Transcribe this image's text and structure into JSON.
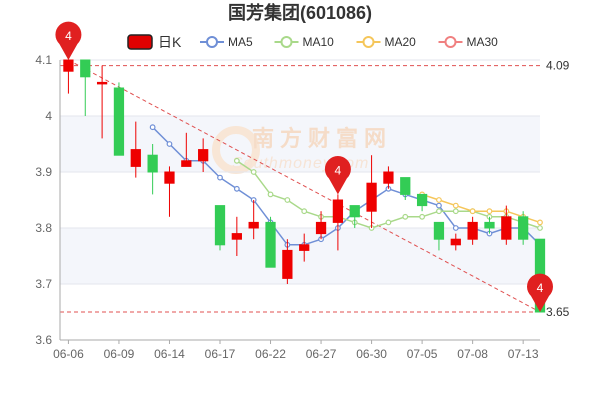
{
  "chart_data": {
    "type": "candlestick",
    "title": "国芳集团(601086)",
    "legend": {
      "kline": "日K",
      "items": [
        {
          "name": "MA5",
          "color": "#6f8fd6"
        },
        {
          "name": "MA10",
          "color": "#a9d98a"
        },
        {
          "name": "MA20",
          "color": "#f5c65a"
        },
        {
          "name": "MA30",
          "color": "#f08080"
        }
      ]
    },
    "colors": {
      "up": "#ee0000",
      "down": "#33cc55"
    },
    "ylim": [
      3.6,
      4.1
    ],
    "yticks": [
      "3.6",
      "3.7",
      "3.8",
      "3.9",
      "4",
      "4.1"
    ],
    "x_labels": [
      "06-06",
      "06-09",
      "06-14",
      "06-17",
      "06-22",
      "06-27",
      "06-30",
      "07-05",
      "07-08",
      "07-13"
    ],
    "candles": [
      {
        "o": 4.08,
        "c": 4.1,
        "h": 4.1,
        "l": 4.04
      },
      {
        "o": 4.1,
        "c": 4.07,
        "h": 4.1,
        "l": 4.0
      },
      {
        "o": 4.06,
        "c": 4.06,
        "h": 4.09,
        "l": 3.96
      },
      {
        "o": 4.05,
        "c": 3.93,
        "h": 4.06,
        "l": 3.93
      },
      {
        "o": 3.91,
        "c": 3.94,
        "h": 3.99,
        "l": 3.89
      },
      {
        "o": 3.93,
        "c": 3.9,
        "h": 3.95,
        "l": 3.86
      },
      {
        "o": 3.88,
        "c": 3.9,
        "h": 3.91,
        "l": 3.82
      },
      {
        "o": 3.91,
        "c": 3.92,
        "h": 3.97,
        "l": 3.91
      },
      {
        "o": 3.92,
        "c": 3.94,
        "h": 3.96,
        "l": 3.9
      },
      {
        "o": 3.84,
        "c": 3.77,
        "h": 3.84,
        "l": 3.76
      },
      {
        "o": 3.78,
        "c": 3.79,
        "h": 3.82,
        "l": 3.75
      },
      {
        "o": 3.8,
        "c": 3.81,
        "h": 3.85,
        "l": 3.78
      },
      {
        "o": 3.81,
        "c": 3.73,
        "h": 3.82,
        "l": 3.73
      },
      {
        "o": 3.71,
        "c": 3.76,
        "h": 3.78,
        "l": 3.7
      },
      {
        "o": 3.76,
        "c": 3.77,
        "h": 3.79,
        "l": 3.74
      },
      {
        "o": 3.79,
        "c": 3.81,
        "h": 3.83,
        "l": 3.78
      },
      {
        "o": 3.81,
        "c": 3.85,
        "h": 3.86,
        "l": 3.76
      },
      {
        "o": 3.84,
        "c": 3.82,
        "h": 3.84,
        "l": 3.8
      },
      {
        "o": 3.83,
        "c": 3.88,
        "h": 3.93,
        "l": 3.8
      },
      {
        "o": 3.88,
        "c": 3.9,
        "h": 3.91,
        "l": 3.87
      },
      {
        "o": 3.89,
        "c": 3.86,
        "h": 3.89,
        "l": 3.85
      },
      {
        "o": 3.86,
        "c": 3.84,
        "h": 3.86,
        "l": 3.83
      },
      {
        "o": 3.81,
        "c": 3.78,
        "h": 3.81,
        "l": 3.76
      },
      {
        "o": 3.77,
        "c": 3.78,
        "h": 3.79,
        "l": 3.76
      },
      {
        "o": 3.78,
        "c": 3.81,
        "h": 3.82,
        "l": 3.77
      },
      {
        "o": 3.81,
        "c": 3.8,
        "h": 3.82,
        "l": 3.79
      },
      {
        "o": 3.78,
        "c": 3.82,
        "h": 3.84,
        "l": 3.77
      },
      {
        "o": 3.82,
        "c": 3.78,
        "h": 3.83,
        "l": 3.77
      },
      {
        "o": 3.78,
        "c": 3.65,
        "h": 3.78,
        "l": 3.65
      }
    ],
    "series": [
      {
        "name": "MA5",
        "values": [
          null,
          null,
          null,
          null,
          null,
          3.98,
          3.95,
          3.92,
          3.92,
          3.89,
          3.87,
          3.85,
          3.81,
          3.77,
          3.77,
          3.78,
          3.8,
          3.83,
          3.85,
          3.87,
          3.86,
          3.85,
          3.84,
          3.8,
          3.8,
          3.79,
          3.8,
          3.8,
          3.77
        ]
      },
      {
        "name": "MA10",
        "values": [
          null,
          null,
          null,
          null,
          null,
          null,
          null,
          null,
          null,
          null,
          3.92,
          3.9,
          3.86,
          3.85,
          3.83,
          3.82,
          3.82,
          3.81,
          3.8,
          3.81,
          3.82,
          3.82,
          3.83,
          3.83,
          3.83,
          3.82,
          3.82,
          3.81,
          3.8
        ]
      },
      {
        "name": "MA20",
        "values": [
          null,
          null,
          null,
          null,
          null,
          null,
          null,
          null,
          null,
          null,
          null,
          null,
          null,
          null,
          null,
          null,
          null,
          null,
          null,
          null,
          null,
          3.86,
          3.85,
          3.84,
          3.83,
          3.83,
          3.83,
          3.82,
          3.81
        ]
      },
      {
        "name": "MA30",
        "values": []
      }
    ],
    "reference_lines": [
      {
        "value": 4.09,
        "label": "4.09"
      },
      {
        "value": 3.65,
        "label": "3.65"
      }
    ],
    "markers": [
      {
        "index": 0,
        "price": 4.1,
        "label": "4"
      },
      {
        "index": 16,
        "price": 3.86,
        "label": "4"
      },
      {
        "index": 28,
        "price": 3.65,
        "label": "4"
      }
    ],
    "trendline": {
      "from_index": 0,
      "from_price": 4.1,
      "to_index": 28,
      "to_price": 3.65
    },
    "watermark": {
      "cn": "南方财富网",
      "en": "Southmoney.com"
    }
  }
}
